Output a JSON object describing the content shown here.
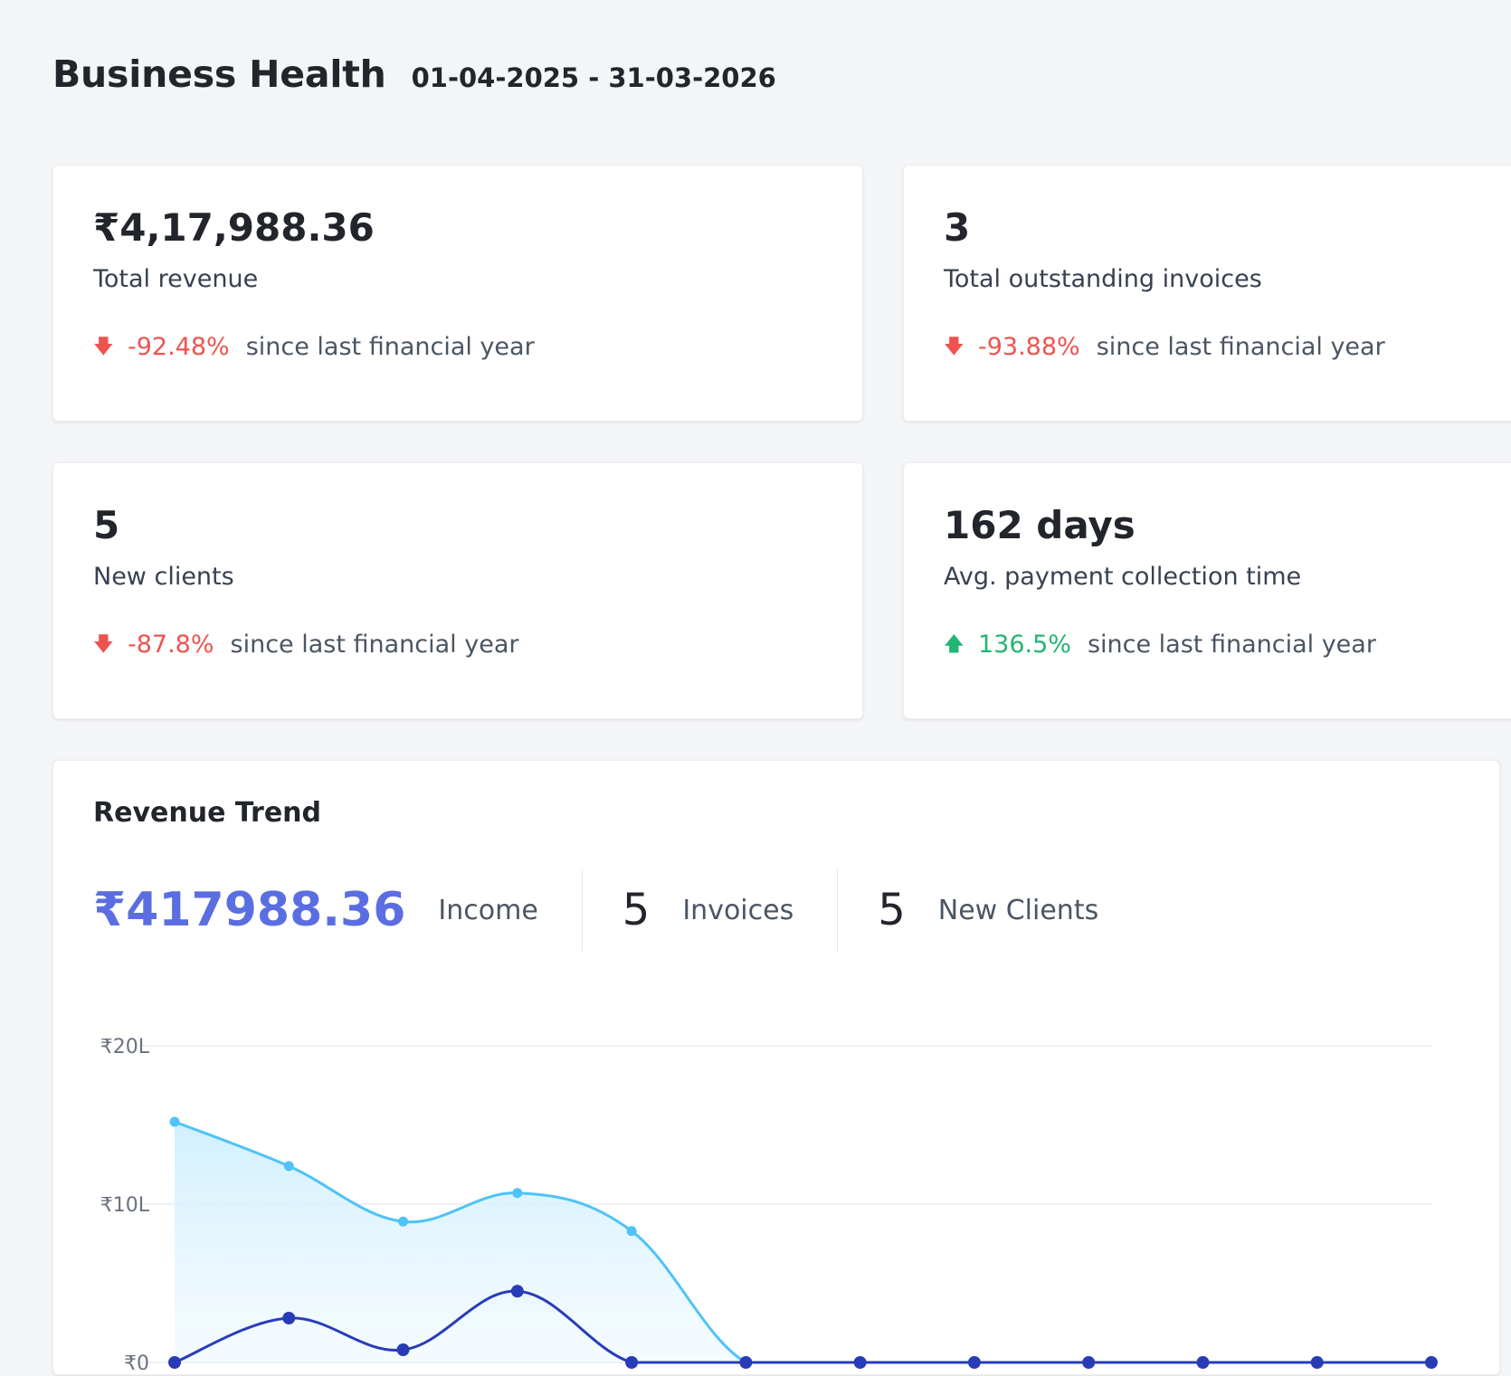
{
  "header": {
    "title": "Business Health",
    "date_range": "01-04-2025 - 31-03-2026"
  },
  "stats": [
    {
      "value": "₹4,17,988.36",
      "label": "Total revenue",
      "direction": "down",
      "change": "-92.48%",
      "note": "since last financial year"
    },
    {
      "value": "3",
      "label": "Total outstanding invoices",
      "direction": "down",
      "change": "-93.88%",
      "note": "since last financial year"
    },
    {
      "value": "5",
      "label": "New clients",
      "direction": "down",
      "change": "-87.8%",
      "note": "since last financial year"
    },
    {
      "value": "162 days",
      "label": "Avg. payment collection time",
      "direction": "up",
      "change": "136.5%",
      "note": "since last financial year"
    }
  ],
  "revenue_trend": {
    "title": "Revenue Trend",
    "income_value": "₹417988.36",
    "income_label": "Income",
    "invoices_value": "5",
    "invoices_label": "Invoices",
    "clients_value": "5",
    "clients_label": "New Clients"
  },
  "colors": {
    "accent": "#5b6ee1",
    "negative": "#ef5350",
    "positive": "#22b573",
    "series_light": "#4fc3f7",
    "series_dark": "#283cb8"
  },
  "chart_data": {
    "type": "area",
    "y_tick_labels": [
      "₹0",
      "₹10L",
      "₹20L"
    ],
    "y_ticks": [
      0,
      1000000,
      2000000
    ],
    "ylim": [
      0,
      2000000
    ],
    "x": [
      0,
      1,
      2,
      3,
      4,
      5,
      6,
      7,
      8,
      9,
      10,
      11
    ],
    "grid": true,
    "series": [
      {
        "values": [
          1520000,
          1240000,
          890000,
          1070000,
          830000,
          0,
          0,
          0,
          0,
          0,
          0,
          0
        ]
      },
      {
        "values": [
          0,
          280000,
          80000,
          450000,
          0,
          0,
          0,
          0,
          0,
          0,
          0,
          0
        ]
      }
    ]
  }
}
